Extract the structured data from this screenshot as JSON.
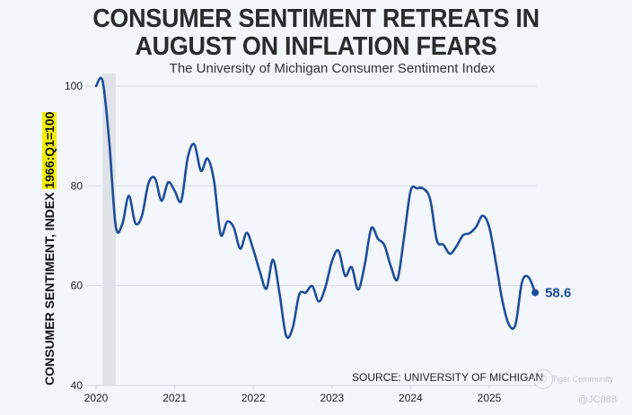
{
  "chart_data": {
    "type": "line",
    "title": "CONSUMER SENTIMENT RETREATS IN AUGUST ON INFLATION FEARS",
    "title_lines": [
      "CONSUMER SENTIMENT RETREATS IN",
      "AUGUST ON INFLATION FEARS"
    ],
    "subtitle": "The University of Michigan Consumer Sentiment Index",
    "ylabel_main": "CONSUMER SENTIMENT, INDEX ",
    "ylabel_highlight": "1966:Q1=100",
    "xlabel": "",
    "ylim": [
      40,
      100
    ],
    "yticks": [
      40,
      60,
      80,
      100
    ],
    "xlim": [
      2020.0,
      2025.75
    ],
    "xticks": [
      2020,
      2021,
      2022,
      2023,
      2024,
      2025
    ],
    "grid": true,
    "recession_shading": {
      "start": 2020.083,
      "end": 2020.25
    },
    "series": [
      {
        "name": "Consumer Sentiment Index",
        "color": "#1e4d9a",
        "start": "2020-01",
        "frequency": "monthly",
        "values": [
          100,
          101,
          89,
          72,
          72.3,
          78,
          72.5,
          74,
          80.5,
          81.5,
          77,
          80.7,
          79,
          77,
          85.7,
          88.3,
          83,
          85.5,
          81,
          70.3,
          72.8,
          71.7,
          67.4,
          70.6,
          67.2,
          62.8,
          59.4,
          65.2,
          58.4,
          50,
          51.5,
          58.2,
          58.6,
          59.9,
          56.8,
          59.7,
          64.9,
          67,
          62,
          63.7,
          59.2,
          64.2,
          71.5,
          69.4,
          68.1,
          63.8,
          61.3,
          69.7,
          79,
          79.5,
          79.4,
          77.2,
          69.1,
          68.2,
          66.4,
          67.9,
          70.1,
          70.5,
          71.8,
          74,
          71.7,
          64.7,
          57,
          52.2,
          52.2,
          60.7,
          61.7,
          58.6
        ]
      }
    ],
    "last_value_label": "58.6",
    "source": "SOURCE: UNIVERSITY OF MICHIGAN"
  },
  "watermark": {
    "brand": "Tiger Community",
    "handle": "@JC888"
  }
}
